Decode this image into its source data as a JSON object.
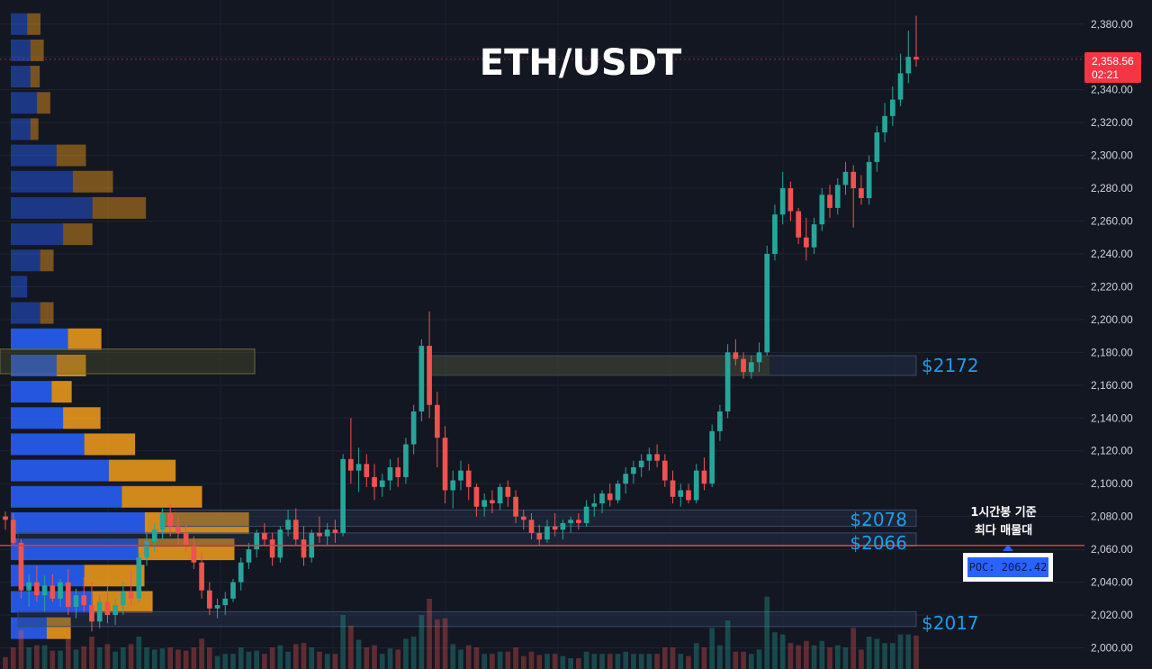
{
  "header": {
    "title": "ETH/USDT"
  },
  "price_axis": {
    "ticks": [
      "2,380.00",
      "2,360.00",
      "2,340.00",
      "2,320.00",
      "2,300.00",
      "2,280.00",
      "2,260.00",
      "2,240.00",
      "2,220.00",
      "2,200.00",
      "2,180.00",
      "2,160.00",
      "2,140.00",
      "2,120.00",
      "2,100.00",
      "2,080.00",
      "2,060.00",
      "2,040.00",
      "2,020.00",
      "2,000.00"
    ]
  },
  "last_price": {
    "price": "2,358.56",
    "countdown": "02:21",
    "color": "#f23645"
  },
  "levels": [
    {
      "label": "$2172"
    },
    {
      "label": "$2078"
    },
    {
      "label": "$2066"
    },
    {
      "label": "$2017"
    }
  ],
  "note": {
    "line1": "1시간봉 기준",
    "line2": "최다 매물대"
  },
  "poc": {
    "text": "POC: 2062.42"
  },
  "colors": {
    "up": "#26a69a",
    "down": "#ef5350",
    "profile_buy": "#2962ff",
    "profile_sell": "#f59d1a",
    "poc_line": "#e53935",
    "level_text": "#1e9de8"
  },
  "chart_data": {
    "type": "candlestick",
    "title": "ETH/USDT",
    "ylim": [
      1995,
      2390
    ],
    "y_ticks": [
      2380,
      2360,
      2340,
      2320,
      2300,
      2280,
      2260,
      2240,
      2220,
      2200,
      2180,
      2160,
      2140,
      2120,
      2100,
      2080,
      2060,
      2040,
      2020,
      2000
    ],
    "candles": [
      [
        2080,
        2083,
        2072,
        2078
      ],
      [
        2078,
        2082,
        2062,
        2064
      ],
      [
        2064,
        2066,
        2030,
        2035
      ],
      [
        2035,
        2045,
        2025,
        2040
      ],
      [
        2040,
        2050,
        2028,
        2032
      ],
      [
        2032,
        2044,
        2022,
        2038
      ],
      [
        2038,
        2045,
        2028,
        2030
      ],
      [
        2030,
        2042,
        2025,
        2040
      ],
      [
        2040,
        2048,
        2020,
        2025
      ],
      [
        2025,
        2036,
        2018,
        2032
      ],
      [
        2032,
        2043,
        2022,
        2026
      ],
      [
        2026,
        2040,
        2010,
        2016
      ],
      [
        2016,
        2032,
        2012,
        2028
      ],
      [
        2028,
        2038,
        2015,
        2020
      ],
      [
        2020,
        2030,
        2014,
        2026
      ],
      [
        2026,
        2040,
        2020,
        2034
      ],
      [
        2034,
        2048,
        2025,
        2030
      ],
      [
        2030,
        2058,
        2028,
        2055
      ],
      [
        2055,
        2070,
        2050,
        2065
      ],
      [
        2065,
        2076,
        2058,
        2072
      ],
      [
        2072,
        2085,
        2066,
        2082
      ],
      [
        2082,
        2088,
        2068,
        2074
      ],
      [
        2074,
        2080,
        2062,
        2070
      ],
      [
        2070,
        2075,
        2058,
        2062
      ],
      [
        2062,
        2068,
        2048,
        2052
      ],
      [
        2052,
        2058,
        2030,
        2035
      ],
      [
        2035,
        2040,
        2020,
        2024
      ],
      [
        2024,
        2030,
        2018,
        2026
      ],
      [
        2026,
        2034,
        2020,
        2030
      ],
      [
        2030,
        2042,
        2028,
        2040
      ],
      [
        2040,
        2055,
        2035,
        2052
      ],
      [
        2052,
        2064,
        2048,
        2060
      ],
      [
        2060,
        2072,
        2055,
        2070
      ],
      [
        2070,
        2076,
        2062,
        2066
      ],
      [
        2066,
        2070,
        2050,
        2055
      ],
      [
        2055,
        2074,
        2052,
        2072
      ],
      [
        2072,
        2084,
        2068,
        2078
      ],
      [
        2078,
        2085,
        2062,
        2066
      ],
      [
        2066,
        2074,
        2050,
        2055
      ],
      [
        2055,
        2072,
        2052,
        2070
      ],
      [
        2070,
        2080,
        2064,
        2068
      ],
      [
        2068,
        2076,
        2062,
        2072
      ],
      [
        2072,
        2078,
        2064,
        2070
      ],
      [
        2070,
        2118,
        2068,
        2115
      ],
      [
        2115,
        2140,
        2100,
        2108
      ],
      [
        2108,
        2122,
        2095,
        2112
      ],
      [
        2112,
        2118,
        2098,
        2104
      ],
      [
        2104,
        2112,
        2090,
        2098
      ],
      [
        2098,
        2106,
        2092,
        2102
      ],
      [
        2102,
        2115,
        2096,
        2110
      ],
      [
        2110,
        2116,
        2098,
        2104
      ],
      [
        2104,
        2128,
        2100,
        2124
      ],
      [
        2124,
        2148,
        2118,
        2144
      ],
      [
        2144,
        2188,
        2138,
        2184
      ],
      [
        2184,
        2205,
        2140,
        2148
      ],
      [
        2148,
        2156,
        2110,
        2128
      ],
      [
        2128,
        2135,
        2088,
        2096
      ],
      [
        2096,
        2108,
        2085,
        2102
      ],
      [
        2102,
        2114,
        2096,
        2108
      ],
      [
        2108,
        2112,
        2090,
        2098
      ],
      [
        2098,
        2100,
        2080,
        2086
      ],
      [
        2086,
        2094,
        2080,
        2090
      ],
      [
        2090,
        2096,
        2082,
        2088
      ],
      [
        2088,
        2100,
        2084,
        2098
      ],
      [
        2098,
        2102,
        2086,
        2092
      ],
      [
        2092,
        2096,
        2076,
        2080
      ],
      [
        2080,
        2084,
        2072,
        2078
      ],
      [
        2078,
        2082,
        2066,
        2070
      ],
      [
        2070,
        2075,
        2062,
        2066
      ],
      [
        2066,
        2078,
        2064,
        2074
      ],
      [
        2074,
        2082,
        2068,
        2072
      ],
      [
        2072,
        2078,
        2066,
        2076
      ],
      [
        2076,
        2080,
        2070,
        2078
      ],
      [
        2078,
        2082,
        2072,
        2076
      ],
      [
        2076,
        2090,
        2074,
        2086
      ],
      [
        2086,
        2094,
        2080,
        2088
      ],
      [
        2088,
        2096,
        2082,
        2094
      ],
      [
        2094,
        2100,
        2086,
        2090
      ],
      [
        2090,
        2102,
        2088,
        2100
      ],
      [
        2100,
        2110,
        2094,
        2106
      ],
      [
        2106,
        2114,
        2100,
        2110
      ],
      [
        2110,
        2118,
        2104,
        2114
      ],
      [
        2114,
        2122,
        2108,
        2118
      ],
      [
        2118,
        2124,
        2110,
        2114
      ],
      [
        2114,
        2118,
        2098,
        2102
      ],
      [
        2102,
        2108,
        2088,
        2092
      ],
      [
        2092,
        2100,
        2086,
        2096
      ],
      [
        2096,
        2100,
        2088,
        2090
      ],
      [
        2090,
        2112,
        2088,
        2108
      ],
      [
        2108,
        2116,
        2096,
        2100
      ],
      [
        2100,
        2136,
        2098,
        2132
      ],
      [
        2132,
        2148,
        2126,
        2144
      ],
      [
        2144,
        2185,
        2140,
        2180
      ],
      [
        2180,
        2188,
        2172,
        2176
      ],
      [
        2176,
        2180,
        2164,
        2168
      ],
      [
        2168,
        2178,
        2164,
        2174
      ],
      [
        2174,
        2186,
        2168,
        2180
      ],
      [
        2180,
        2245,
        2178,
        2240
      ],
      [
        2240,
        2270,
        2236,
        2264
      ],
      [
        2264,
        2290,
        2258,
        2280
      ],
      [
        2280,
        2284,
        2260,
        2266
      ],
      [
        2266,
        2268,
        2246,
        2250
      ],
      [
        2250,
        2262,
        2236,
        2244
      ],
      [
        2244,
        2262,
        2240,
        2258
      ],
      [
        2258,
        2280,
        2254,
        2276
      ],
      [
        2276,
        2282,
        2262,
        2268
      ],
      [
        2268,
        2286,
        2264,
        2282
      ],
      [
        2282,
        2296,
        2276,
        2290
      ],
      [
        2290,
        2294,
        2256,
        2280
      ],
      [
        2280,
        2288,
        2270,
        2274
      ],
      [
        2274,
        2300,
        2270,
        2296
      ],
      [
        2296,
        2318,
        2290,
        2314
      ],
      [
        2314,
        2332,
        2308,
        2324
      ],
      [
        2324,
        2342,
        2318,
        2334
      ],
      [
        2334,
        2362,
        2330,
        2350
      ],
      [
        2350,
        2376,
        2344,
        2360
      ],
      [
        2360,
        2385,
        2354,
        2358.56
      ]
    ],
    "volume_profile": [
      {
        "price": 2380,
        "buy": 0.1,
        "sell": 0.1
      },
      {
        "price": 2364,
        "buy": 0.12,
        "sell": 0.1
      },
      {
        "price": 2348,
        "buy": 0.12,
        "sell": 0.07
      },
      {
        "price": 2332,
        "buy": 0.16,
        "sell": 0.1
      },
      {
        "price": 2316,
        "buy": 0.12,
        "sell": 0.06
      },
      {
        "price": 2300,
        "buy": 0.28,
        "sell": 0.22
      },
      {
        "price": 2284,
        "buy": 0.38,
        "sell": 0.3
      },
      {
        "price": 2268,
        "buy": 0.5,
        "sell": 0.4
      },
      {
        "price": 2252,
        "buy": 0.32,
        "sell": 0.22
      },
      {
        "price": 2236,
        "buy": 0.18,
        "sell": 0.1
      },
      {
        "price": 2220,
        "buy": 0.1,
        "sell": 0
      },
      {
        "price": 2204,
        "buy": 0.18,
        "sell": 0.1
      },
      {
        "price": 2188,
        "buy": 0.35,
        "sell": 0.25
      },
      {
        "price": 2172,
        "buy": 0.28,
        "sell": 0.22
      },
      {
        "price": 2156,
        "buy": 0.25,
        "sell": 0.15
      },
      {
        "price": 2140,
        "buy": 0.32,
        "sell": 0.28
      },
      {
        "price": 2124,
        "buy": 0.45,
        "sell": 0.38
      },
      {
        "price": 2108,
        "buy": 0.6,
        "sell": 0.5
      },
      {
        "price": 2092,
        "buy": 0.68,
        "sell": 0.6
      },
      {
        "price": 2076,
        "buy": 0.82,
        "sell": 0.78
      },
      {
        "price": 2060,
        "buy": 0.78,
        "sell": 0.72
      },
      {
        "price": 2044,
        "buy": 0.45,
        "sell": 0.45
      },
      {
        "price": 2028,
        "buy": 0.5,
        "sell": 0.45
      },
      {
        "price": 2012,
        "buy": 0.22,
        "sell": 0.18
      }
    ],
    "zones": [
      {
        "low": 2166,
        "high": 2178,
        "label": "$2172"
      },
      {
        "low": 2074,
        "high": 2084,
        "label": "$2078"
      },
      {
        "low": 2062,
        "high": 2070,
        "label": "$2066"
      },
      {
        "low": 2013,
        "high": 2022,
        "label": "$2017"
      }
    ],
    "poc": 2062.42,
    "last_price": 2358.56
  }
}
